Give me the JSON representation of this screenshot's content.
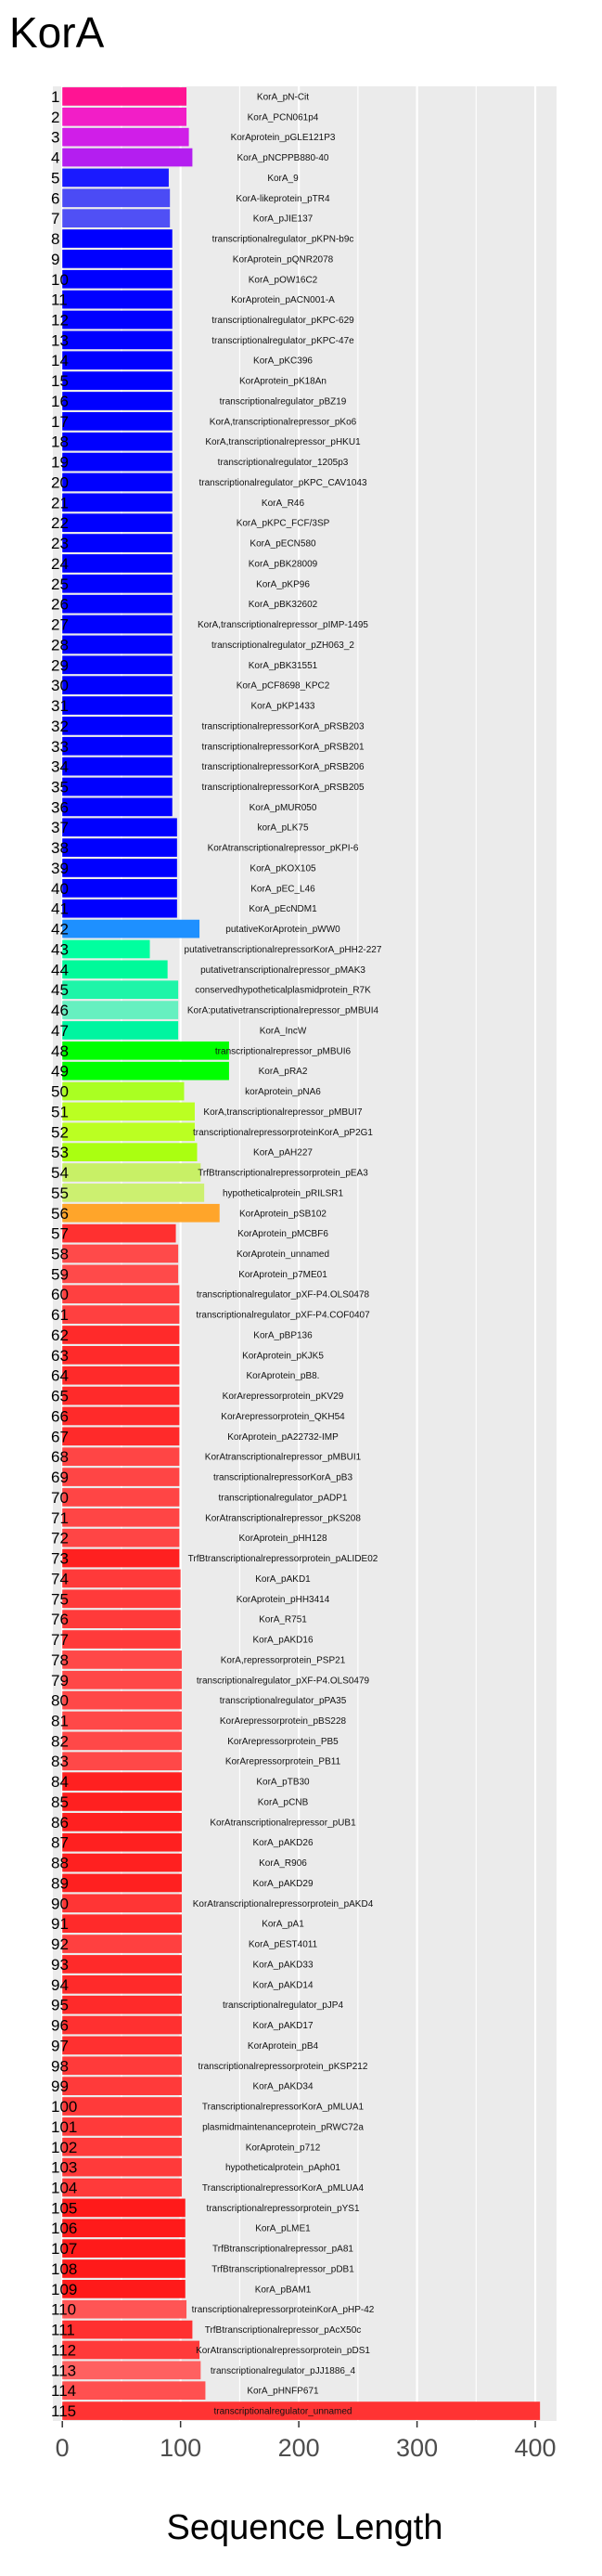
{
  "chart_data": {
    "type": "bar",
    "orientation": "horizontal",
    "title": "KorA",
    "xlabel": "Sequence Length",
    "ylabel": "",
    "xlim": [
      -8,
      418
    ],
    "xticks": [
      0,
      100,
      200,
      300,
      400
    ],
    "grid": true,
    "legend": "none",
    "colors": {
      "panel": "#ebebeb",
      "gridline": "#ffffff"
    },
    "bars": [
      {
        "n": "1",
        "label": "KorA_pN-Cit",
        "value": 105,
        "color": "#ff1493"
      },
      {
        "n": "2",
        "label": "KorA_PCN061p4",
        "value": 105,
        "color": "#f21ec7"
      },
      {
        "n": "3",
        "label": "KorAprotein_pGLE121P3",
        "value": 107,
        "color": "#d01ee8"
      },
      {
        "n": "4",
        "label": "KorA_pNCPPB880-40",
        "value": 110,
        "color": "#b41ef0"
      },
      {
        "n": "5",
        "label": "KorA_9",
        "value": 90,
        "color": "#1a1aff"
      },
      {
        "n": "6",
        "label": "KorA-likeprotein_pTR4",
        "value": 91,
        "color": "#4b4bf5"
      },
      {
        "n": "7",
        "label": "KorA_pJIE137",
        "value": 91,
        "color": "#5050f5"
      },
      {
        "n": "8",
        "label": "transcriptionalregulator_pKPN-b9c",
        "value": 93,
        "color": "#0000ff"
      },
      {
        "n": "9",
        "label": "KorAprotein_pQNR2078",
        "value": 93,
        "color": "#0000ff"
      },
      {
        "n": "10",
        "label": "KorA_pOW16C2",
        "value": 93,
        "color": "#0000ff"
      },
      {
        "n": "11",
        "label": "KorAprotein_pACN001-A",
        "value": 93,
        "color": "#0000ff"
      },
      {
        "n": "12",
        "label": "transcriptionalregulator_pKPC-629",
        "value": 93,
        "color": "#0000ff"
      },
      {
        "n": "13",
        "label": "transcriptionalregulator_pKPC-47e",
        "value": 93,
        "color": "#0000ff"
      },
      {
        "n": "14",
        "label": "KorA_pKC396",
        "value": 93,
        "color": "#0000ff"
      },
      {
        "n": "15",
        "label": "KorAprotein_pK18An",
        "value": 93,
        "color": "#0000ff"
      },
      {
        "n": "16",
        "label": "transcriptionalregulator_pBZ19",
        "value": 93,
        "color": "#0000ff"
      },
      {
        "n": "17",
        "label": "KorA,transcriptionalrepressor_pKo6",
        "value": 93,
        "color": "#0000ff"
      },
      {
        "n": "18",
        "label": "KorA,transcriptionalrepressor_pHKU1",
        "value": 93,
        "color": "#0000ff"
      },
      {
        "n": "19",
        "label": "transcriptionalregulator_1205p3",
        "value": 93,
        "color": "#0000ff"
      },
      {
        "n": "20",
        "label": "transcriptionalregulator_pKPC_CAV1043",
        "value": 93,
        "color": "#0000ff"
      },
      {
        "n": "21",
        "label": "KorA_R46",
        "value": 93,
        "color": "#0000ff"
      },
      {
        "n": "22",
        "label": "KorA_pKPC_FCF/3SP",
        "value": 93,
        "color": "#0000ff"
      },
      {
        "n": "23",
        "label": "KorA_pECN580",
        "value": 93,
        "color": "#0000ff"
      },
      {
        "n": "24",
        "label": "KorA_pBK28009",
        "value": 93,
        "color": "#0000ff"
      },
      {
        "n": "25",
        "label": "KorA_pKP96",
        "value": 93,
        "color": "#0000ff"
      },
      {
        "n": "26",
        "label": "KorA_pBK32602",
        "value": 93,
        "color": "#0000ff"
      },
      {
        "n": "27",
        "label": "KorA,transcriptionalrepressor_pIMP-1495",
        "value": 93,
        "color": "#0000ff"
      },
      {
        "n": "28",
        "label": "transcriptionalregulator_pZH063_2",
        "value": 93,
        "color": "#0000ff"
      },
      {
        "n": "29",
        "label": "KorA_pBK31551",
        "value": 93,
        "color": "#0000ff"
      },
      {
        "n": "30",
        "label": "KorA_pCF8698_KPC2",
        "value": 93,
        "color": "#0000ff"
      },
      {
        "n": "31",
        "label": "KorA_pKP1433",
        "value": 93,
        "color": "#0000ff"
      },
      {
        "n": "32",
        "label": "transcriptionalrepressorKorA_pRSB203",
        "value": 93,
        "color": "#0000ff"
      },
      {
        "n": "33",
        "label": "transcriptionalrepressorKorA_pRSB201",
        "value": 93,
        "color": "#0000ff"
      },
      {
        "n": "34",
        "label": "transcriptionalrepressorKorA_pRSB206",
        "value": 93,
        "color": "#0000ff"
      },
      {
        "n": "35",
        "label": "transcriptionalrepressorKorA_pRSB205",
        "value": 93,
        "color": "#0000ff"
      },
      {
        "n": "36",
        "label": "KorA_pMUR050",
        "value": 93,
        "color": "#0000ff"
      },
      {
        "n": "37",
        "label": "korA_pLK75",
        "value": 97,
        "color": "#0000ff"
      },
      {
        "n": "38",
        "label": "KorAtranscriptionalrepressor_pKPI-6",
        "value": 97,
        "color": "#0000ff"
      },
      {
        "n": "39",
        "label": "KorA_pKOX105",
        "value": 97,
        "color": "#0000ff"
      },
      {
        "n": "40",
        "label": "KorA_pEC_L46",
        "value": 97,
        "color": "#0000ff"
      },
      {
        "n": "41",
        "label": "KorA_pEcNDM1",
        "value": 97,
        "color": "#0000ff"
      },
      {
        "n": "42",
        "label": "putativeKorAprotein_pWW0",
        "value": 116,
        "color": "#1e90ff"
      },
      {
        "n": "43",
        "label": "putativetranscriptionalrepressorKorA_pHH2-227",
        "value": 74,
        "color": "#00ff9f"
      },
      {
        "n": "44",
        "label": "putativetranscriptionalrepressor_pMAK3",
        "value": 89,
        "color": "#00fa9a"
      },
      {
        "n": "45",
        "label": "conservedhypotheticalplasmidprotein_R7K",
        "value": 98,
        "color": "#1ef5a8"
      },
      {
        "n": "46",
        "label": "KorA:putativetranscriptionalrepressor_pMBUI4",
        "value": 98,
        "color": "#66f0c0"
      },
      {
        "n": "47",
        "label": "KorA_IncW",
        "value": 98,
        "color": "#00f5a0"
      },
      {
        "n": "48",
        "label": "transcriptionalrepressor_pMBUI6",
        "value": 141,
        "color": "#00ff00"
      },
      {
        "n": "49",
        "label": "KorA_pRA2",
        "value": 141,
        "color": "#00ff00"
      },
      {
        "n": "50",
        "label": "korAprotein_pNA6",
        "value": 103,
        "color": "#aaff22"
      },
      {
        "n": "51",
        "label": "KorA,transcriptionalrepressor_pMBUI7",
        "value": 112,
        "color": "#bbff22"
      },
      {
        "n": "52",
        "label": "transcriptionalrepressorproteinKorA_pP2G1",
        "value": 112,
        "color": "#bbff22"
      },
      {
        "n": "53",
        "label": "KorA_pAH227",
        "value": 114,
        "color": "#aaff11"
      },
      {
        "n": "54",
        "label": "TrfBtranscriptionalrepressorprotein_pEA3",
        "value": 117,
        "color": "#c8f066"
      },
      {
        "n": "55",
        "label": "hypotheticalprotein_pRILSR1",
        "value": 120,
        "color": "#ccf070"
      },
      {
        "n": "56",
        "label": "KorAprotein_pSB102",
        "value": 133,
        "color": "#ffa52a"
      },
      {
        "n": "57",
        "label": "KorAprotein_pMCBF6",
        "value": 96,
        "color": "#ff3030"
      },
      {
        "n": "58",
        "label": "KorAprotein_unnamed",
        "value": 98,
        "color": "#ff4a4a"
      },
      {
        "n": "59",
        "label": "KorAprotein_p7ME01",
        "value": 98,
        "color": "#ff4a4a"
      },
      {
        "n": "60",
        "label": "transcriptionalregulator_pXF-P4.OLS0478",
        "value": 99,
        "color": "#ff4040"
      },
      {
        "n": "61",
        "label": "transcriptionalregulator_pXF-P4.COF0407",
        "value": 99,
        "color": "#ff4040"
      },
      {
        "n": "62",
        "label": "KorA_pBP136",
        "value": 99,
        "color": "#ff2a2a"
      },
      {
        "n": "63",
        "label": "KorAprotein_pKJK5",
        "value": 99,
        "color": "#ff2a2a"
      },
      {
        "n": "64",
        "label": "KorAprotein_pB8.",
        "value": 99,
        "color": "#ff2a2a"
      },
      {
        "n": "65",
        "label": "KorArepressorprotein_pKV29",
        "value": 99,
        "color": "#ff2a2a"
      },
      {
        "n": "66",
        "label": "KorArepressorprotein_QKH54",
        "value": 99,
        "color": "#ff2a2a"
      },
      {
        "n": "67",
        "label": "KorAprotein_pA22732-IMP",
        "value": 99,
        "color": "#ff2a2a"
      },
      {
        "n": "68",
        "label": "KorAtranscriptionalrepressor_pMBUI1",
        "value": 99,
        "color": "#ff4545"
      },
      {
        "n": "69",
        "label": "transcriptionalrepressorKorA_pB3",
        "value": 99,
        "color": "#ff4545"
      },
      {
        "n": "70",
        "label": "transcriptionalregulator_pADP1",
        "value": 99,
        "color": "#ff4545"
      },
      {
        "n": "71",
        "label": "KorAtranscriptionalrepressor_pKS208",
        "value": 99,
        "color": "#ff4545"
      },
      {
        "n": "72",
        "label": "KorAprotein_pHH128",
        "value": 99,
        "color": "#ff4545"
      },
      {
        "n": "73",
        "label": "TrfBtranscriptionalrepressorprotein_pALIDE02",
        "value": 99,
        "color": "#ff2020"
      },
      {
        "n": "74",
        "label": "KorA_pAKD1",
        "value": 100,
        "color": "#ff3a3a"
      },
      {
        "n": "75",
        "label": "KorAprotein_pHH3414",
        "value": 100,
        "color": "#ff3a3a"
      },
      {
        "n": "76",
        "label": "KorA_R751",
        "value": 100,
        "color": "#ff3a3a"
      },
      {
        "n": "77",
        "label": "KorA_pAKD16",
        "value": 100,
        "color": "#ff3a3a"
      },
      {
        "n": "78",
        "label": "KorA,repressorprotein_PSP21",
        "value": 101,
        "color": "#ff4848"
      },
      {
        "n": "79",
        "label": "transcriptionalregulator_pXF-P4.OLS0479",
        "value": 101,
        "color": "#ff4848"
      },
      {
        "n": "80",
        "label": "transcriptionalregulator_pPA35",
        "value": 101,
        "color": "#ff4848"
      },
      {
        "n": "81",
        "label": "KorArepressorprotein_pBS228",
        "value": 101,
        "color": "#ff4848"
      },
      {
        "n": "82",
        "label": "KorArepressorprotein_PB5",
        "value": 101,
        "color": "#ff4848"
      },
      {
        "n": "83",
        "label": "KorArepressorprotein_PB11",
        "value": 101,
        "color": "#ff4848"
      },
      {
        "n": "84",
        "label": "KorA_pTB30",
        "value": 101,
        "color": "#ff2020"
      },
      {
        "n": "85",
        "label": "KorA_pCNB",
        "value": 101,
        "color": "#ff2020"
      },
      {
        "n": "86",
        "label": "KorAtranscriptionalrepressor_pUB1",
        "value": 101,
        "color": "#ff2020"
      },
      {
        "n": "87",
        "label": "KorA_pAKD26",
        "value": 101,
        "color": "#ff2020"
      },
      {
        "n": "88",
        "label": "KorA_R906",
        "value": 101,
        "color": "#ff2020"
      },
      {
        "n": "89",
        "label": "KorA_pAKD29",
        "value": 101,
        "color": "#ff2020"
      },
      {
        "n": "90",
        "label": "KorAtranscriptionalrepressorprotein_pAKD4",
        "value": 101,
        "color": "#ff3535"
      },
      {
        "n": "91",
        "label": "KorA_pA1",
        "value": 101,
        "color": "#ff2a2a"
      },
      {
        "n": "92",
        "label": "KorA_pEST4011",
        "value": 101,
        "color": "#ff4040"
      },
      {
        "n": "93",
        "label": "KorA_pAKD33",
        "value": 101,
        "color": "#ff2a2a"
      },
      {
        "n": "94",
        "label": "KorA_pAKD14",
        "value": 101,
        "color": "#ff2a2a"
      },
      {
        "n": "95",
        "label": "transcriptionalregulator_pJP4",
        "value": 101,
        "color": "#ff2a2a"
      },
      {
        "n": "96",
        "label": "KorA_pAKD17",
        "value": 101,
        "color": "#ff3030"
      },
      {
        "n": "97",
        "label": "KorAprotein_pB4",
        "value": 101,
        "color": "#ff3030"
      },
      {
        "n": "98",
        "label": "transcriptionalrepressorprotein_pKSP212",
        "value": 101,
        "color": "#ff3a3a"
      },
      {
        "n": "99",
        "label": "KorA_pAKD34",
        "value": 101,
        "color": "#ff3a3a"
      },
      {
        "n": "100",
        "label": "TranscriptionalrepressorKorA_pMLUA1",
        "value": 101,
        "color": "#ff3a3a"
      },
      {
        "n": "101",
        "label": "plasmidmaintenanceprotein_pRWC72a",
        "value": 101,
        "color": "#ff3a3a"
      },
      {
        "n": "102",
        "label": "KorAprotein_p712",
        "value": 101,
        "color": "#ff3a3a"
      },
      {
        "n": "103",
        "label": "hypotheticalprotein_pAph01",
        "value": 101,
        "color": "#ff3a3a"
      },
      {
        "n": "104",
        "label": "TranscriptionalrepressorKorA_pMLUA4",
        "value": 101,
        "color": "#ff3a3a"
      },
      {
        "n": "105",
        "label": "transcriptionalrepressorprotein_pYS1",
        "value": 104,
        "color": "#ff1a1a"
      },
      {
        "n": "106",
        "label": "KorA_pLME1",
        "value": 104,
        "color": "#ff1a1a"
      },
      {
        "n": "107",
        "label": "TrfBtranscriptionalrepressor_pA81",
        "value": 104,
        "color": "#ff1a1a"
      },
      {
        "n": "108",
        "label": "TrfBtranscriptionalrepressor_pDB1",
        "value": 104,
        "color": "#ff1a1a"
      },
      {
        "n": "109",
        "label": "KorA_pBAM1",
        "value": 104,
        "color": "#ff1a1a"
      },
      {
        "n": "110",
        "label": "transcriptionalrepressorproteinKorA_pHP-42",
        "value": 105,
        "color": "#ff5555"
      },
      {
        "n": "111",
        "label": "TrfBtranscriptionalrepressor_pAcX50c",
        "value": 110,
        "color": "#ff3030"
      },
      {
        "n": "112",
        "label": "KorAtranscriptionalrepressorprotein_pDS1",
        "value": 116,
        "color": "#ff3a3a"
      },
      {
        "n": "113",
        "label": "transcriptionalregulator_pJJ1886_4",
        "value": 117,
        "color": "#ff6060"
      },
      {
        "n": "114",
        "label": "KorA_pHNFP671",
        "value": 121,
        "color": "#ff5050"
      },
      {
        "n": "115",
        "label": "transcriptionalregulator_unnamed",
        "value": 404,
        "color": "#ff3333"
      }
    ]
  }
}
